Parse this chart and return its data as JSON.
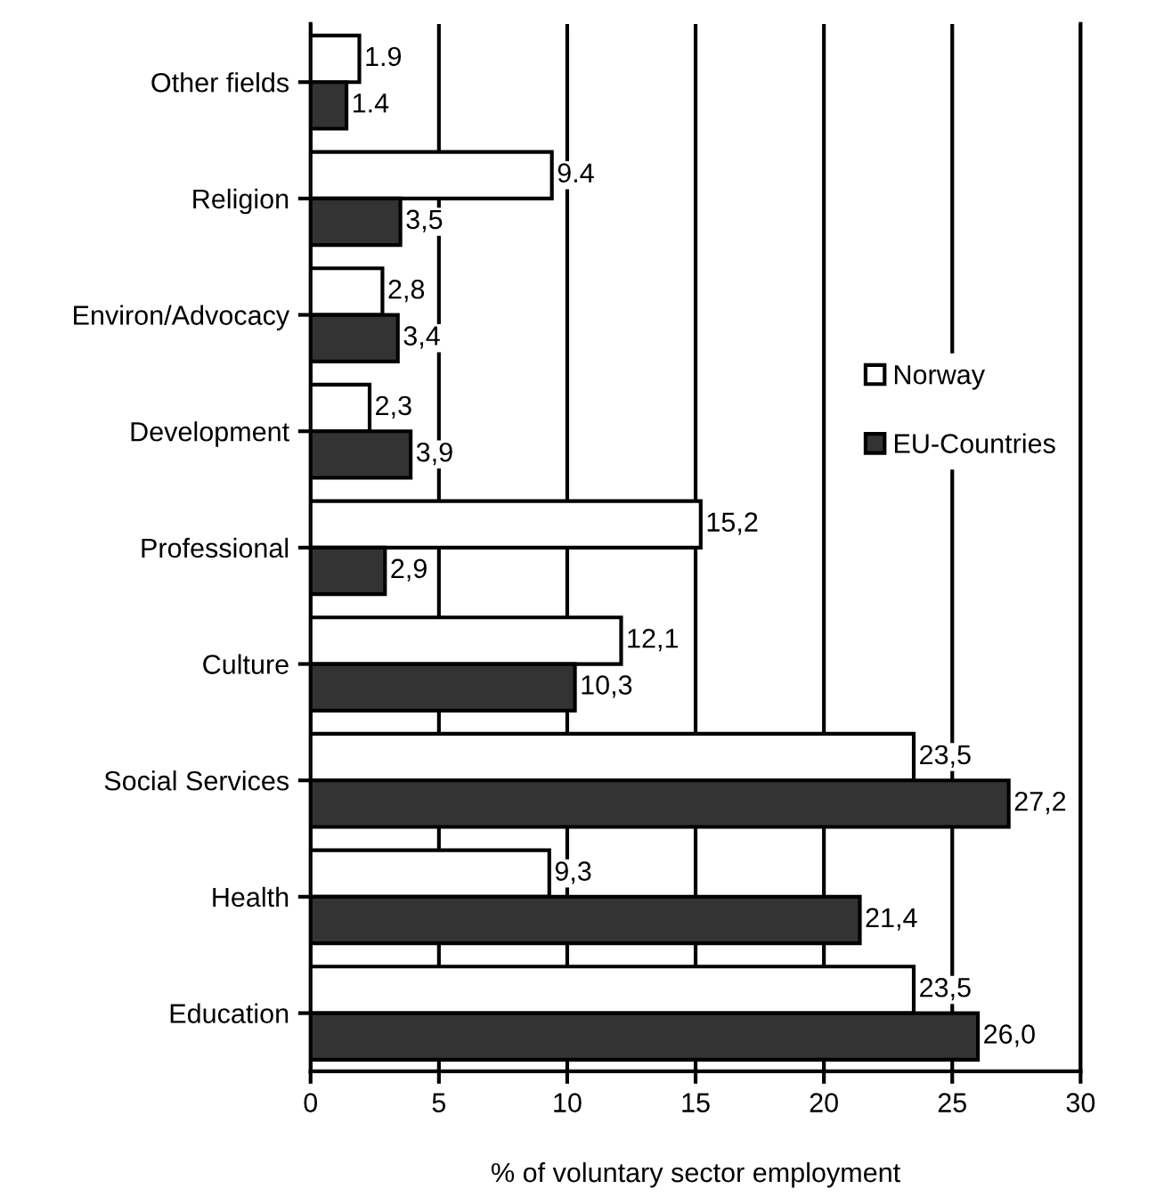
{
  "chart_data": {
    "type": "bar",
    "orientation": "horizontal",
    "xlabel": "% of voluntary sector employment",
    "categories": [
      "Other fields",
      "Religion",
      "Environ/Advocacy",
      "Development",
      "Professional",
      "Culture",
      "Social Services",
      "Health",
      "Education"
    ],
    "series": [
      {
        "name": "Norway",
        "color": "#ffffff",
        "values": [
          1.9,
          9.4,
          2.8,
          2.3,
          15.2,
          12.1,
          23.5,
          9.3,
          23.5
        ],
        "value_labels": [
          "1.9",
          "9.4",
          "2,8",
          "2,3",
          "15,2",
          "12,1",
          "23,5",
          "9,3",
          "23,5"
        ]
      },
      {
        "name": "EU-Countries",
        "color": "#333333",
        "values": [
          1.4,
          3.5,
          3.4,
          3.9,
          2.9,
          10.3,
          27.2,
          21.4,
          26.0
        ],
        "value_labels": [
          "1.4",
          "3,5",
          "3,4",
          "3,9",
          "2,9",
          "10,3",
          "27,2",
          "21,4",
          "26,0"
        ]
      }
    ],
    "xlim": [
      0,
      30
    ],
    "xticks": [
      0,
      5,
      10,
      15,
      20,
      25,
      30
    ],
    "grid": "x",
    "legend": "right"
  }
}
